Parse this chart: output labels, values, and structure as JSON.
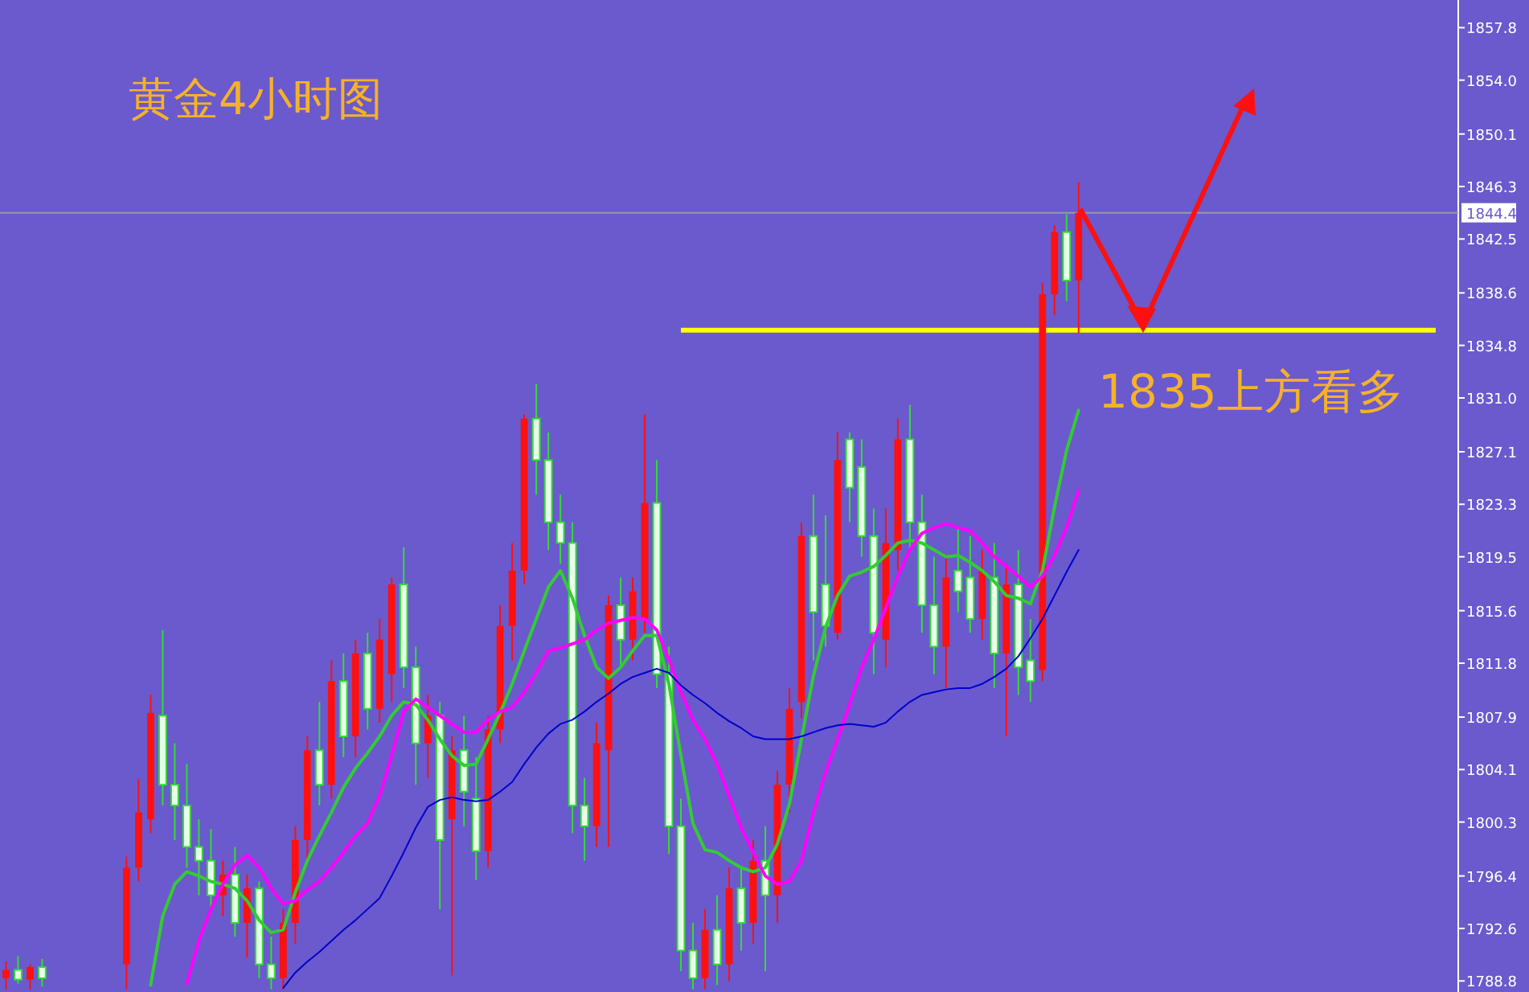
{
  "chart_data": {
    "type": "candlestick",
    "title": "黄金4小时图",
    "categories": [
      null,
      null,
      null,
      null,
      null,
      null,
      null,
      null,
      null,
      null,
      null,
      null,
      null,
      null,
      null,
      null,
      null,
      null,
      null,
      null,
      null,
      null,
      null,
      null,
      null,
      null,
      null,
      null,
      null,
      null,
      null,
      null,
      null,
      null,
      null,
      null,
      null,
      null,
      null,
      null,
      null,
      null,
      null,
      null,
      null,
      null,
      null,
      null,
      null,
      null,
      null,
      null,
      null,
      null,
      null,
      null,
      null,
      null,
      null,
      null,
      null,
      null,
      null,
      null,
      null,
      null,
      null,
      null,
      null,
      null,
      null,
      null,
      null,
      null,
      null,
      null,
      null,
      null,
      null,
      null,
      null,
      null,
      null,
      null,
      null,
      null,
      null,
      null,
      null,
      null,
      null,
      null,
      null,
      null,
      null,
      null,
      null,
      null,
      null,
      null,
      null,
      null,
      null,
      null,
      null,
      null,
      null,
      null,
      null,
      null,
      null,
      null,
      null,
      null,
      null,
      null,
      null,
      null,
      null,
      null,
      null
    ],
    "ohlc": [
      [
        1789.0,
        1790.2,
        1788.2,
        1789.6
      ],
      [
        1789.6,
        1790.6,
        1788.6,
        1788.9
      ],
      [
        1788.9,
        1790.0,
        1788.2,
        1789.8
      ],
      [
        1789.8,
        1790.4,
        1788.4,
        1789.0
      ],
      null,
      null,
      null,
      null,
      null,
      null,
      [
        1790.0,
        1797.8,
        1788.2,
        1797.0
      ],
      [
        1797.0,
        1803.4,
        1796.0,
        1801.0
      ],
      [
        1800.5,
        1809.5,
        1799.5,
        1808.2
      ],
      [
        1808.0,
        1814.2,
        1801.5,
        1803.0
      ],
      [
        1803.0,
        1806.0,
        1799.0,
        1801.5
      ],
      [
        1801.5,
        1804.5,
        1797.0,
        1798.5
      ],
      [
        1798.5,
        1800.5,
        1795.0,
        1797.5
      ],
      [
        1797.5,
        1799.8,
        1794.0,
        1795.0
      ],
      [
        1795.0,
        1797.5,
        1793.5,
        1796.5
      ],
      [
        1796.5,
        1798.5,
        1792.0,
        1793.0
      ],
      [
        1793.0,
        1796.5,
        1790.5,
        1795.5
      ],
      [
        1795.5,
        1796.0,
        1789.0,
        1790.0
      ],
      [
        1790.0,
        1792.0,
        1788.2,
        1789.0
      ],
      [
        1789.0,
        1794.0,
        1788.2,
        1793.0
      ],
      [
        1793.0,
        1800.0,
        1791.5,
        1799.0
      ],
      [
        1799.0,
        1806.5,
        1797.5,
        1805.5
      ],
      [
        1805.5,
        1809.0,
        1801.5,
        1803.0
      ],
      [
        1803.0,
        1812.0,
        1802.0,
        1810.5
      ],
      [
        1810.5,
        1812.5,
        1805.0,
        1806.5
      ],
      [
        1806.5,
        1813.5,
        1805.0,
        1812.5
      ],
      [
        1812.5,
        1814.0,
        1807.0,
        1808.5
      ],
      [
        1808.5,
        1815.0,
        1807.5,
        1813.5
      ],
      [
        1811.0,
        1818.0,
        1809.0,
        1817.5
      ],
      [
        1817.5,
        1820.2,
        1810.0,
        1811.5
      ],
      [
        1811.5,
        1813.0,
        1803.0,
        1806.0
      ],
      [
        1806.0,
        1809.5,
        1803.5,
        1808.0
      ],
      [
        1808.0,
        1809.0,
        1794.0,
        1799.0
      ],
      [
        1800.5,
        1806.5,
        1789.2,
        1805.5
      ],
      [
        1805.5,
        1808.0,
        1800.0,
        1802.5
      ],
      [
        1802.0,
        1805.0,
        1796.1,
        1798.2
      ],
      [
        1798.2,
        1808.0,
        1797.0,
        1807.0
      ],
      [
        1807.0,
        1816.0,
        1806.0,
        1814.5
      ],
      [
        1814.5,
        1820.5,
        1812.0,
        1818.5
      ],
      [
        1818.5,
        1829.8,
        1817.5,
        1829.5
      ],
      [
        1829.5,
        1832.0,
        1824.0,
        1826.5
      ],
      [
        1826.5,
        1828.5,
        1820.0,
        1822.0
      ],
      [
        1822.0,
        1824.0,
        1819.0,
        1820.5
      ],
      [
        1820.5,
        1822.0,
        1799.5,
        1801.5
      ],
      [
        1801.5,
        1803.5,
        1797.5,
        1800.0
      ],
      [
        1800.0,
        1807.5,
        1798.5,
        1806.0
      ],
      [
        1805.5,
        1816.7,
        1798.5,
        1816.0
      ],
      [
        1816.0,
        1818.0,
        1811.5,
        1813.5
      ],
      [
        1813.5,
        1818.0,
        1812.0,
        1817.0
      ],
      [
        1815.0,
        1829.8,
        1814.0,
        1823.4
      ],
      [
        1823.4,
        1826.5,
        1810.0,
        1811.0
      ],
      [
        1811.0,
        1813.0,
        1798.0,
        1800.0
      ],
      [
        1800.0,
        1802.0,
        1789.5,
        1791.0
      ],
      [
        1791.0,
        1793.0,
        1788.2,
        1789.0
      ],
      [
        1789.0,
        1794.0,
        1788.2,
        1792.5
      ],
      [
        1792.5,
        1795.0,
        1788.5,
        1790.0
      ],
      [
        1790.0,
        1797.0,
        1788.8,
        1795.5
      ],
      [
        1795.5,
        1797.0,
        1791.0,
        1793.0
      ],
      [
        1793.0,
        1799.0,
        1791.5,
        1797.5
      ],
      [
        1797.5,
        1800.0,
        1789.5,
        1795.0
      ],
      [
        1795.0,
        1804.0,
        1793.0,
        1803.0
      ],
      [
        1803.0,
        1810.0,
        1801.0,
        1808.5
      ],
      [
        1809.0,
        1822.0,
        1807.8,
        1821.0
      ],
      [
        1821.0,
        1824.0,
        1812.0,
        1815.5
      ],
      [
        1817.5,
        1822.5,
        1813.0,
        1814.5
      ],
      [
        1814.0,
        1828.5,
        1813.5,
        1826.5
      ],
      [
        1828.0,
        1828.5,
        1822.0,
        1824.5
      ],
      [
        1826.0,
        1828.0,
        1819.5,
        1821.0
      ],
      [
        1821.0,
        1823.0,
        1811.0,
        1814.0
      ],
      [
        1813.5,
        1823.0,
        1811.5,
        1820.5
      ],
      [
        1820.0,
        1829.5,
        1818.5,
        1828.0
      ],
      [
        1828.0,
        1830.5,
        1820.0,
        1822.0
      ],
      [
        1822.0,
        1824.0,
        1814.0,
        1816.0
      ],
      [
        1816.0,
        1819.5,
        1811.0,
        1813.0
      ],
      [
        1813.0,
        1819.5,
        1810.0,
        1818.0
      ],
      [
        1818.5,
        1821.5,
        1815.5,
        1817.0
      ],
      [
        1818.0,
        1821.0,
        1814.0,
        1815.0
      ],
      [
        1815.0,
        1820.0,
        1813.5,
        1818.5
      ],
      [
        1818.0,
        1820.5,
        1810.0,
        1812.5
      ],
      [
        1812.5,
        1819.0,
        1806.5,
        1817.5
      ],
      [
        1817.5,
        1820.0,
        1809.5,
        1811.5
      ],
      [
        1812.0,
        1815.0,
        1809.0,
        1810.5
      ],
      [
        1811.3,
        1839.3,
        1810.5,
        1838.5
      ],
      [
        1838.5,
        1843.5,
        1837.0,
        1843.0
      ],
      [
        1843.0,
        1844.3,
        1838.0,
        1839.5
      ],
      [
        1839.5,
        1846.6,
        1835.7,
        1844.4
      ],
      null,
      null,
      null,
      null,
      null,
      null,
      null,
      null,
      null,
      null,
      null,
      null,
      null,
      null,
      null,
      null,
      null,
      null,
      null,
      null,
      null,
      null,
      null,
      null,
      null,
      null,
      null,
      null,
      null,
      null,
      null
    ],
    "series": [
      {
        "type": "line",
        "color": "#33cc33",
        "values": [
          null,
          null,
          null,
          null,
          null,
          null,
          null,
          null,
          null,
          null,
          null,
          null,
          1788.5,
          1793.5,
          1795.8,
          1796.7,
          1796.4,
          1796.0,
          1795.8,
          1795.5,
          1794.6,
          1793.2,
          1792.3,
          1792.5,
          1795.2,
          1797.5,
          1799.3,
          1801.0,
          1802.8,
          1804.2,
          1805.3,
          1806.5,
          1808.0,
          1809.0,
          1808.8,
          1807.7,
          1806.3,
          1805.1,
          1804.4,
          1804.5,
          1806.3,
          1808.2,
          1810.3,
          1812.7,
          1815.0,
          1817.3,
          1818.5,
          1816.5,
          1813.8,
          1811.5,
          1810.7,
          1811.5,
          1812.7,
          1813.8,
          1813.8,
          1810.3,
          1805.1,
          1800.2,
          1798.3,
          1798.1,
          1797.5,
          1797.0,
          1796.7,
          1797.0,
          1798.7,
          1801.6,
          1806.3,
          1810.9,
          1814.4,
          1816.7,
          1818.1,
          1818.4,
          1818.8,
          1819.6,
          1820.5,
          1820.7,
          1820.5,
          1820.0,
          1819.5,
          1819.6,
          1819.1,
          1818.5,
          1817.7,
          1816.7,
          1816.5,
          1816.1,
          1818.5,
          1823.1,
          1827.2,
          1830.1,
          null,
          null,
          null,
          null,
          null,
          null,
          null,
          null,
          null,
          null,
          null,
          null,
          null,
          null,
          null,
          null,
          null,
          null,
          null,
          null,
          null,
          null,
          null,
          null,
          null,
          null,
          null,
          null,
          null,
          null,
          null
        ]
      },
      {
        "type": "line",
        "color": "#ff00ff",
        "values": [
          null,
          null,
          null,
          null,
          null,
          null,
          null,
          null,
          null,
          null,
          null,
          null,
          null,
          null,
          null,
          1788.6,
          1791.7,
          1794.0,
          1795.8,
          1797.2,
          1797.9,
          1797.0,
          1795.5,
          1794.4,
          1794.6,
          1795.4,
          1796.0,
          1797.0,
          1798.1,
          1799.3,
          1800.2,
          1802.2,
          1805.1,
          1808.3,
          1809.2,
          1808.6,
          1808.0,
          1807.4,
          1806.8,
          1806.8,
          1807.7,
          1808.3,
          1808.6,
          1809.7,
          1811.1,
          1812.7,
          1812.9,
          1813.2,
          1813.5,
          1814.2,
          1814.7,
          1814.9,
          1815.1,
          1815.0,
          1814.2,
          1812.1,
          1809.7,
          1807.7,
          1806.3,
          1804.5,
          1802.2,
          1799.9,
          1798.1,
          1796.4,
          1795.8,
          1796.0,
          1797.5,
          1801.0,
          1803.9,
          1806.3,
          1808.8,
          1811.5,
          1813.5,
          1815.8,
          1818.1,
          1820.0,
          1821.2,
          1821.6,
          1821.9,
          1821.6,
          1821.4,
          1820.5,
          1819.5,
          1818.8,
          1818.1,
          1817.3,
          1818.1,
          1819.6,
          1821.6,
          1824.3,
          null,
          null,
          null,
          null,
          null,
          null,
          null,
          null,
          null,
          null,
          null,
          null,
          null,
          null,
          null,
          null,
          null,
          null,
          null,
          null,
          null,
          null,
          null,
          null,
          null,
          null,
          null,
          null,
          null,
          null,
          null
        ]
      },
      {
        "type": "line",
        "color": "#0000cc",
        "values": [
          null,
          null,
          null,
          null,
          null,
          null,
          null,
          null,
          null,
          null,
          null,
          null,
          null,
          null,
          null,
          null,
          null,
          null,
          null,
          null,
          null,
          null,
          null,
          1788.3,
          1789.4,
          1790.2,
          1790.9,
          1791.7,
          1792.5,
          1793.2,
          1794.0,
          1794.8,
          1796.4,
          1798.1,
          1799.9,
          1801.4,
          1801.9,
          1802.1,
          1801.9,
          1801.8,
          1801.9,
          1802.5,
          1803.2,
          1804.5,
          1805.7,
          1806.7,
          1807.4,
          1807.7,
          1808.3,
          1809.0,
          1809.6,
          1810.3,
          1810.8,
          1811.1,
          1811.4,
          1811.1,
          1810.2,
          1809.5,
          1808.9,
          1808.2,
          1807.6,
          1807.1,
          1806.5,
          1806.3,
          1806.3,
          1806.3,
          1806.5,
          1806.8,
          1807.1,
          1807.3,
          1807.4,
          1807.3,
          1807.2,
          1807.5,
          1808.3,
          1809.0,
          1809.5,
          1809.7,
          1809.9,
          1810.0,
          1810.0,
          1810.3,
          1810.8,
          1811.4,
          1812.3,
          1813.6,
          1815.0,
          1816.7,
          1818.4,
          1820.0,
          null,
          null,
          null,
          null,
          null,
          null,
          null,
          null,
          null,
          null,
          null,
          null,
          null,
          null,
          null,
          null,
          null,
          null,
          null,
          null,
          null,
          null,
          null,
          null,
          null,
          null,
          null,
          null,
          null,
          null,
          null
        ]
      }
    ],
    "ylim": [
      1788.0,
      1859.8
    ],
    "yticks": [
      1788.8,
      1792.6,
      1796.4,
      1800.3,
      1804.1,
      1807.9,
      1811.8,
      1815.6,
      1819.5,
      1823.3,
      1827.1,
      {
        "value": 1831.0,
        "label": "1831.0"
      },
      1834.8,
      1838.6,
      1842.5,
      1846.3,
      1850.1,
      {
        "value": 1854.0,
        "label": "1854.0"
      },
      1857.8
    ],
    "tick_labels": "y",
    "ref_lines": [
      {
        "axis": "y",
        "value": 1835.9,
        "label": "1835上方看多",
        "color": "#ffff00"
      },
      {
        "axis": "y",
        "value": 1844.4,
        "label": "1844.4",
        "color": "#9a9aa8"
      }
    ]
  }
}
